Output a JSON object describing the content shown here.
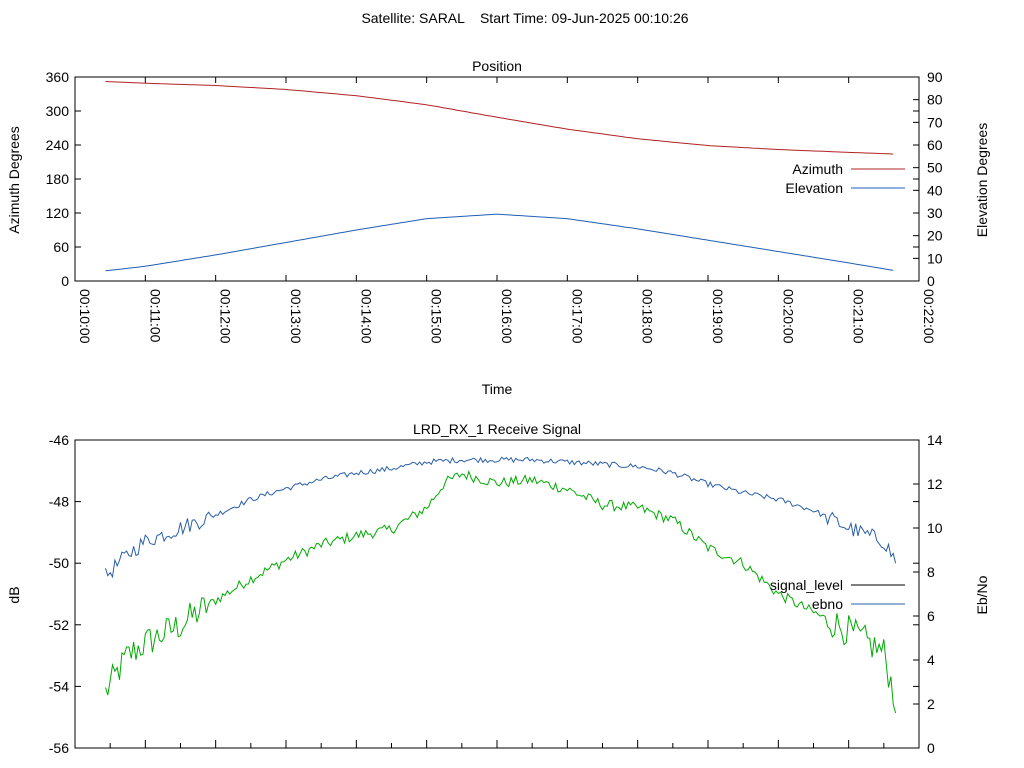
{
  "header": {
    "title": "Satellite: SARAL    Start Time: 09-Jun-2025 00:10:26"
  },
  "colors": {
    "azimuth": "#b22222",
    "elevation": "#1f5fb4",
    "signal_level": "#00aa00",
    "ebno": "#2a5fa8",
    "axis": "#000000"
  },
  "chart_data": [
    {
      "type": "line",
      "title": "Position",
      "xlabel": "Time",
      "ylabel": "Azimuth Degrees",
      "y2label": "Elevation Degrees",
      "xlim": [
        "00:10:00",
        "00:22:00"
      ],
      "ylim": [
        0,
        360
      ],
      "y2lim": [
        0,
        90
      ],
      "x_ticks": [
        "00:10:00",
        "00:11:00",
        "00:12:00",
        "00:13:00",
        "00:14:00",
        "00:15:00",
        "00:16:00",
        "00:17:00",
        "00:18:00",
        "00:19:00",
        "00:20:00",
        "00:21:00",
        "00:22:00"
      ],
      "y_ticks": [
        "0",
        "60",
        "120",
        "180",
        "240",
        "300",
        "360"
      ],
      "y2_ticks": [
        "0",
        "10",
        "20",
        "30",
        "40",
        "50",
        "60",
        "70",
        "80",
        "90"
      ],
      "legend_position": "right",
      "series": [
        {
          "name": "Azimuth",
          "axis": "y",
          "x": [
            "00:10:26",
            "00:11:00",
            "00:12:00",
            "00:13:00",
            "00:14:00",
            "00:15:00",
            "00:16:00",
            "00:17:00",
            "00:18:00",
            "00:19:00",
            "00:20:00",
            "00:21:00",
            "00:21:40"
          ],
          "values": [
            352,
            349,
            345,
            338,
            327,
            311,
            289,
            268,
            251,
            239,
            232,
            227,
            224
          ]
        },
        {
          "name": "Elevation",
          "axis": "y2",
          "x": [
            "00:10:26",
            "00:11:00",
            "00:12:00",
            "00:13:00",
            "00:14:00",
            "00:15:00",
            "00:16:00",
            "00:17:00",
            "00:18:00",
            "00:19:00",
            "00:20:00",
            "00:21:00",
            "00:21:40"
          ],
          "values": [
            4.5,
            6.5,
            11.5,
            17,
            22.5,
            27.5,
            29.5,
            27.5,
            23,
            18,
            13,
            8,
            4.5
          ]
        }
      ]
    },
    {
      "type": "line",
      "title": "LRD_RX_1 Receive Signal",
      "xlabel": "",
      "ylabel": "dB",
      "y2label": "Eb/No",
      "xlim": [
        "00:10:00",
        "00:22:00"
      ],
      "ylim": [
        -56,
        -46
      ],
      "y2lim": [
        0,
        14
      ],
      "y_ticks": [
        "-56",
        "-54",
        "-52",
        "-50",
        "-48",
        "-46"
      ],
      "y2_ticks": [
        "0",
        "2",
        "4",
        "6",
        "8",
        "10",
        "12",
        "14"
      ],
      "legend_position": "right",
      "series": [
        {
          "name": "signal_level",
          "axis": "y",
          "x": [
            "00:10:26",
            "00:10:45",
            "00:11:00",
            "00:11:30",
            "00:12:00",
            "00:12:30",
            "00:13:00",
            "00:13:30",
            "00:14:00",
            "00:14:30",
            "00:15:00",
            "00:15:15",
            "00:15:30",
            "00:16:00",
            "00:16:30",
            "00:17:00",
            "00:17:30",
            "00:18:00",
            "00:18:30",
            "00:19:00",
            "00:19:30",
            "00:20:00",
            "00:20:30",
            "00:21:00",
            "00:21:30",
            "00:21:40"
          ],
          "values": [
            -54.2,
            -53.0,
            -52.6,
            -52.0,
            -51.2,
            -50.5,
            -49.9,
            -49.4,
            -49.1,
            -48.9,
            -48.2,
            -47.4,
            -47.1,
            -47.4,
            -47.3,
            -47.6,
            -48.1,
            -48.2,
            -48.6,
            -49.5,
            -50.0,
            -51.0,
            -51.6,
            -52.2,
            -52.9,
            -54.5
          ]
        },
        {
          "name": "ebno",
          "axis": "y2",
          "x": [
            "00:10:26",
            "00:10:45",
            "00:11:00",
            "00:11:30",
            "00:12:00",
            "00:12:30",
            "00:13:00",
            "00:13:30",
            "00:14:00",
            "00:14:30",
            "00:15:00",
            "00:15:30",
            "00:16:00",
            "00:16:30",
            "00:17:00",
            "00:17:30",
            "00:18:00",
            "00:18:30",
            "00:19:00",
            "00:19:30",
            "00:20:00",
            "00:20:30",
            "00:21:00",
            "00:21:30",
            "00:21:40"
          ],
          "values": [
            7.8,
            8.8,
            9.4,
            10.0,
            10.6,
            11.3,
            11.8,
            12.2,
            12.5,
            12.7,
            13.0,
            13.1,
            13.1,
            13.1,
            13.0,
            12.9,
            12.8,
            12.5,
            12.0,
            11.6,
            11.3,
            10.8,
            10.0,
            9.4,
            8.5
          ]
        }
      ]
    }
  ]
}
